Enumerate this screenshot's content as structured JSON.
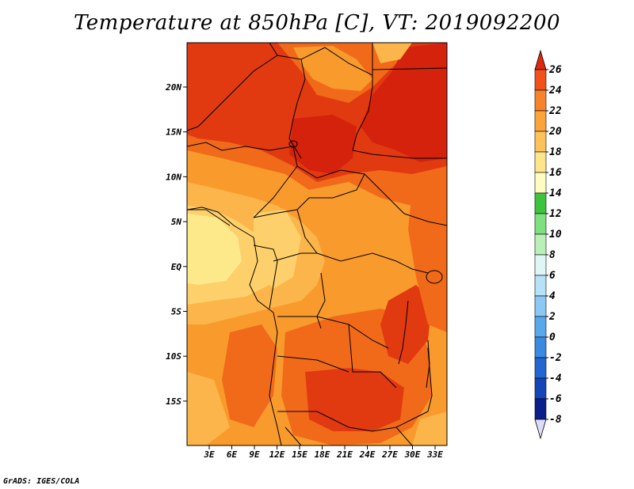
{
  "title": "Temperature at 850hPa [C], VT: 2019092200",
  "credit": "GrADS: IGES/COLA",
  "map": {
    "lon_ticks": [
      "3E",
      "6E",
      "9E",
      "12E",
      "15E",
      "18E",
      "21E",
      "24E",
      "27E",
      "30E",
      "33E"
    ],
    "lat_ticks": [
      "20N",
      "15N",
      "10N",
      "5N",
      "EQ",
      "5S",
      "10S",
      "15S"
    ],
    "fill_colors": {
      "t14_16": "#fee98a",
      "t16_18": "#fdd06b",
      "t18_20": "#fbb54a",
      "t20_22": "#f99a2c",
      "t22_24": "#f06a1a",
      "t24_26": "#e13a10",
      "t26_up": "#d4220c"
    }
  },
  "colorbar": {
    "labels": [
      "26",
      "24",
      "22",
      "20",
      "18",
      "16",
      "14",
      "12",
      "10",
      "8",
      "6",
      "4",
      "2",
      "0",
      "-2",
      "-4",
      "-6",
      "-8"
    ],
    "colors": [
      "#dc2a0f",
      "#f0521a",
      "#f7842a",
      "#fba43c",
      "#fdc25a",
      "#fee48a",
      "#fefcc0",
      "#3cc43c",
      "#7fe07f",
      "#b8f0b8",
      "#e0f6f6",
      "#b6e2f8",
      "#8cc8f4",
      "#5aa8ec",
      "#3a8ae0",
      "#2266d2",
      "#1446b8",
      "#0a1e8c",
      "#08086a"
    ],
    "top_arrow_color": "#dc2a0f",
    "bottom_arrow_color": "#dcdcf8"
  }
}
